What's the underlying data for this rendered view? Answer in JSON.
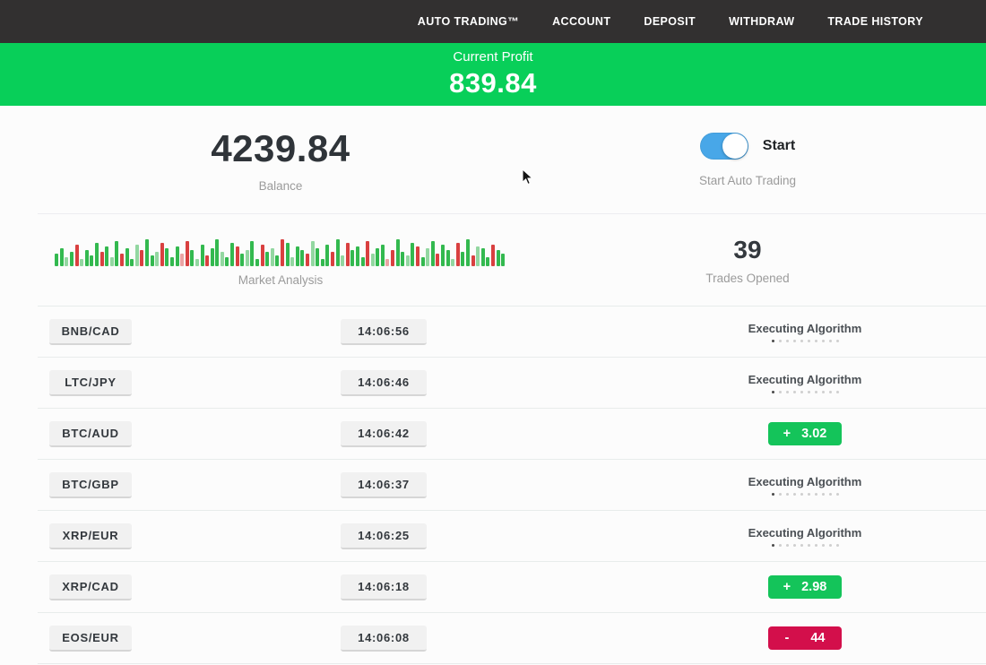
{
  "nav": {
    "items": [
      {
        "label": "AUTO TRADING™"
      },
      {
        "label": "ACCOUNT"
      },
      {
        "label": "DEPOSIT"
      },
      {
        "label": "WITHDRAW"
      },
      {
        "label": "TRADE HISTORY"
      }
    ]
  },
  "profit_banner": {
    "label": "Current Profit",
    "value": "839.84"
  },
  "account": {
    "balance_value": "4239.84",
    "balance_label": "Balance",
    "toggle_state": "on",
    "toggle_label": "Start",
    "toggle_sublabel": "Start Auto Trading"
  },
  "market": {
    "label": "Market Analysis",
    "trades_opened_value": "39",
    "trades_opened_label": "Trades Opened",
    "bars": [
      [
        14,
        "g"
      ],
      [
        20,
        "g"
      ],
      [
        10,
        "G"
      ],
      [
        16,
        "g"
      ],
      [
        24,
        "r"
      ],
      [
        8,
        "G"
      ],
      [
        18,
        "g"
      ],
      [
        12,
        "g"
      ],
      [
        26,
        "g"
      ],
      [
        16,
        "r"
      ],
      [
        22,
        "g"
      ],
      [
        10,
        "G"
      ],
      [
        28,
        "g"
      ],
      [
        14,
        "r"
      ],
      [
        20,
        "g"
      ],
      [
        8,
        "g"
      ],
      [
        24,
        "G"
      ],
      [
        18,
        "r"
      ],
      [
        30,
        "g"
      ],
      [
        12,
        "g"
      ],
      [
        16,
        "G"
      ],
      [
        26,
        "r"
      ],
      [
        20,
        "g"
      ],
      [
        10,
        "g"
      ],
      [
        22,
        "g"
      ],
      [
        14,
        "R"
      ],
      [
        28,
        "r"
      ],
      [
        18,
        "g"
      ],
      [
        8,
        "G"
      ],
      [
        24,
        "g"
      ],
      [
        12,
        "r"
      ],
      [
        20,
        "g"
      ],
      [
        30,
        "g"
      ],
      [
        16,
        "G"
      ],
      [
        10,
        "g"
      ],
      [
        26,
        "g"
      ],
      [
        22,
        "r"
      ],
      [
        14,
        "g"
      ],
      [
        18,
        "G"
      ],
      [
        28,
        "g"
      ],
      [
        8,
        "g"
      ],
      [
        24,
        "r"
      ],
      [
        16,
        "g"
      ],
      [
        20,
        "G"
      ],
      [
        12,
        "g"
      ],
      [
        30,
        "r"
      ],
      [
        26,
        "g"
      ],
      [
        10,
        "G"
      ],
      [
        22,
        "g"
      ],
      [
        18,
        "g"
      ],
      [
        14,
        "r"
      ],
      [
        28,
        "G"
      ],
      [
        20,
        "g"
      ],
      [
        8,
        "g"
      ],
      [
        24,
        "g"
      ],
      [
        16,
        "r"
      ],
      [
        30,
        "g"
      ],
      [
        12,
        "G"
      ],
      [
        26,
        "r"
      ],
      [
        18,
        "g"
      ],
      [
        22,
        "g"
      ],
      [
        10,
        "g"
      ],
      [
        28,
        "r"
      ],
      [
        14,
        "G"
      ],
      [
        20,
        "g"
      ],
      [
        24,
        "g"
      ],
      [
        8,
        "R"
      ],
      [
        18,
        "r"
      ],
      [
        30,
        "g"
      ],
      [
        16,
        "g"
      ],
      [
        12,
        "G"
      ],
      [
        26,
        "g"
      ],
      [
        22,
        "r"
      ],
      [
        10,
        "g"
      ],
      [
        20,
        "G"
      ],
      [
        28,
        "g"
      ],
      [
        14,
        "r"
      ],
      [
        24,
        "g"
      ],
      [
        18,
        "g"
      ],
      [
        8,
        "G"
      ],
      [
        26,
        "r"
      ],
      [
        16,
        "g"
      ],
      [
        30,
        "g"
      ],
      [
        12,
        "r"
      ],
      [
        22,
        "G"
      ],
      [
        20,
        "g"
      ],
      [
        10,
        "g"
      ],
      [
        24,
        "r"
      ],
      [
        18,
        "g"
      ],
      [
        14,
        "g"
      ]
    ]
  },
  "trades": {
    "executing_label": "Executing Algorithm",
    "dots_total": 10,
    "dots_active": 1,
    "rows": [
      {
        "pair": "BNB/CAD",
        "time": "14:06:56",
        "status": {
          "type": "executing"
        }
      },
      {
        "pair": "LTC/JPY",
        "time": "14:06:46",
        "status": {
          "type": "executing"
        }
      },
      {
        "pair": "BTC/AUD",
        "time": "14:06:42",
        "status": {
          "type": "profit",
          "sign": "+",
          "value": "3.02"
        }
      },
      {
        "pair": "BTC/GBP",
        "time": "14:06:37",
        "status": {
          "type": "executing"
        }
      },
      {
        "pair": "XRP/EUR",
        "time": "14:06:25",
        "status": {
          "type": "executing"
        }
      },
      {
        "pair": "XRP/CAD",
        "time": "14:06:18",
        "status": {
          "type": "profit",
          "sign": "+",
          "value": "2.98"
        }
      },
      {
        "pair": "EOS/EUR",
        "time": "14:06:08",
        "status": {
          "type": "loss",
          "sign": "-",
          "value": "44"
        }
      }
    ]
  },
  "colors": {
    "nav_bg": "#323030",
    "banner_green": "#08cf59",
    "profit_green": "#14c45a",
    "loss_red": "#d30f4b",
    "toggle_blue": "#48a7e8",
    "bar_green": "#33b94f",
    "bar_red": "#d94040"
  }
}
